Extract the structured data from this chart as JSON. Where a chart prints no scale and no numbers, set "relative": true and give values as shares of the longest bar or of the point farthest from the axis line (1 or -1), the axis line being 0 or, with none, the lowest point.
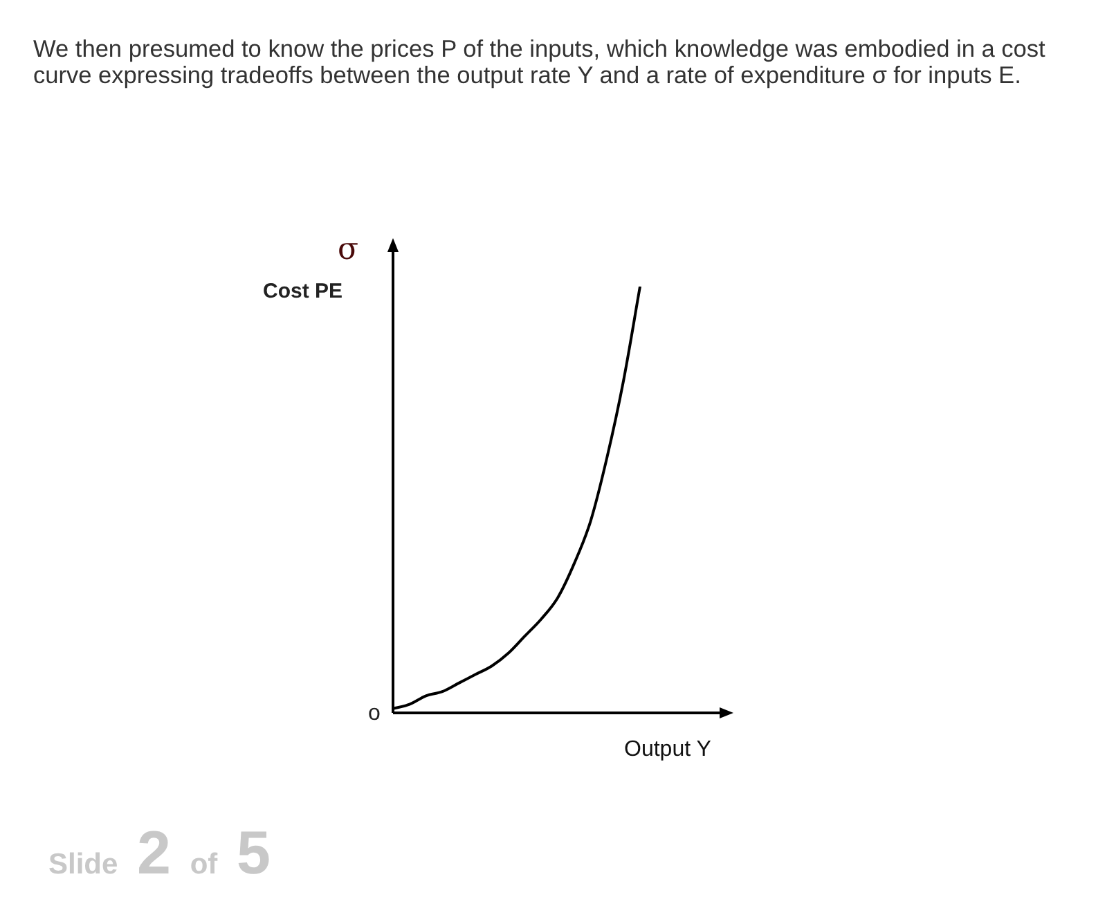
{
  "chart_data": {
    "type": "line",
    "relative": true,
    "ylabel": "Cost PE",
    "xlabel": "Output Y",
    "color": "#000000",
    "marker": "none",
    "legend": false,
    "categories": [
      null,
      null,
      null,
      null,
      null,
      null,
      null,
      null,
      null,
      null,
      null,
      null,
      null,
      null,
      null,
      null,
      null,
      null,
      null,
      null,
      null
    ],
    "values": [
      0.01,
      0.02,
      0.04,
      0.05,
      0.07,
      0.09,
      0.11,
      0.14,
      0.18,
      0.22,
      0.27,
      0.35,
      0.45,
      0.6,
      0.78,
      1,
      null,
      null,
      null,
      null,
      null
    ],
    "annotations": [
      "We then presumed to know the prices P of the inputs, which knowledge was embodied in a cost curve expressing tradeoffs between the output rate Y and a rate of expenditure σ for inputs E.",
      "σ",
      "o",
      "Slide 2 of 5"
    ]
  }
}
